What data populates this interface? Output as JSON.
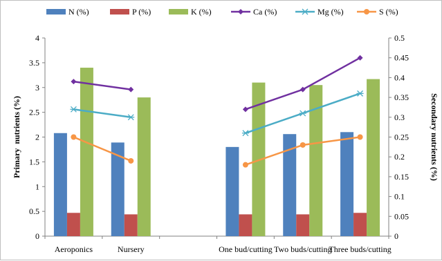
{
  "chart_data": {
    "type": "bar",
    "categories": [
      "Aeroponics",
      "Nursery",
      "",
      "One bud/cutting",
      "Two buds/cutting",
      "Three buds/cutting"
    ],
    "y_left": {
      "label": "Primary  nutrients (%)",
      "ylim": [
        0,
        4
      ],
      "ticks": [
        "0",
        "0.5",
        "1",
        "1.5",
        "2",
        "2.5",
        "3",
        "3.5",
        "4"
      ]
    },
    "y_right": {
      "label": "Secondary nutrients (%)",
      "ylim": [
        0,
        0.5
      ],
      "ticks": [
        "0",
        "0.05",
        "0.1",
        "0.15",
        "0.2",
        "0.25",
        "0.3",
        "0.35",
        "0.4",
        "0.45",
        "0.5"
      ]
    },
    "bar_series": [
      {
        "name": "N (%)",
        "color": "#4f81bd",
        "values": [
          2.08,
          1.89,
          null,
          1.8,
          2.06,
          2.1
        ]
      },
      {
        "name": "P (%)",
        "color": "#c0504d",
        "values": [
          0.47,
          0.44,
          null,
          0.44,
          0.44,
          0.47
        ]
      },
      {
        "name": "K (%)",
        "color": "#9bbb59",
        "values": [
          3.4,
          2.8,
          null,
          3.1,
          3.05,
          3.17
        ]
      }
    ],
    "line_series": [
      {
        "name": "Ca (%)",
        "color": "#7030a0",
        "marker": "diamond",
        "values": [
          0.39,
          0.37,
          null,
          0.32,
          0.37,
          0.45
        ]
      },
      {
        "name": "Mg (%)",
        "color": "#4bacc6",
        "marker": "star",
        "values": [
          0.32,
          0.3,
          null,
          0.26,
          0.31,
          0.36
        ]
      },
      {
        "name": "S (%)",
        "color": "#f79646",
        "marker": "circle",
        "values": [
          0.25,
          0.19,
          null,
          0.18,
          0.23,
          0.25
        ]
      }
    ],
    "legend_position": "top",
    "grid": false
  }
}
